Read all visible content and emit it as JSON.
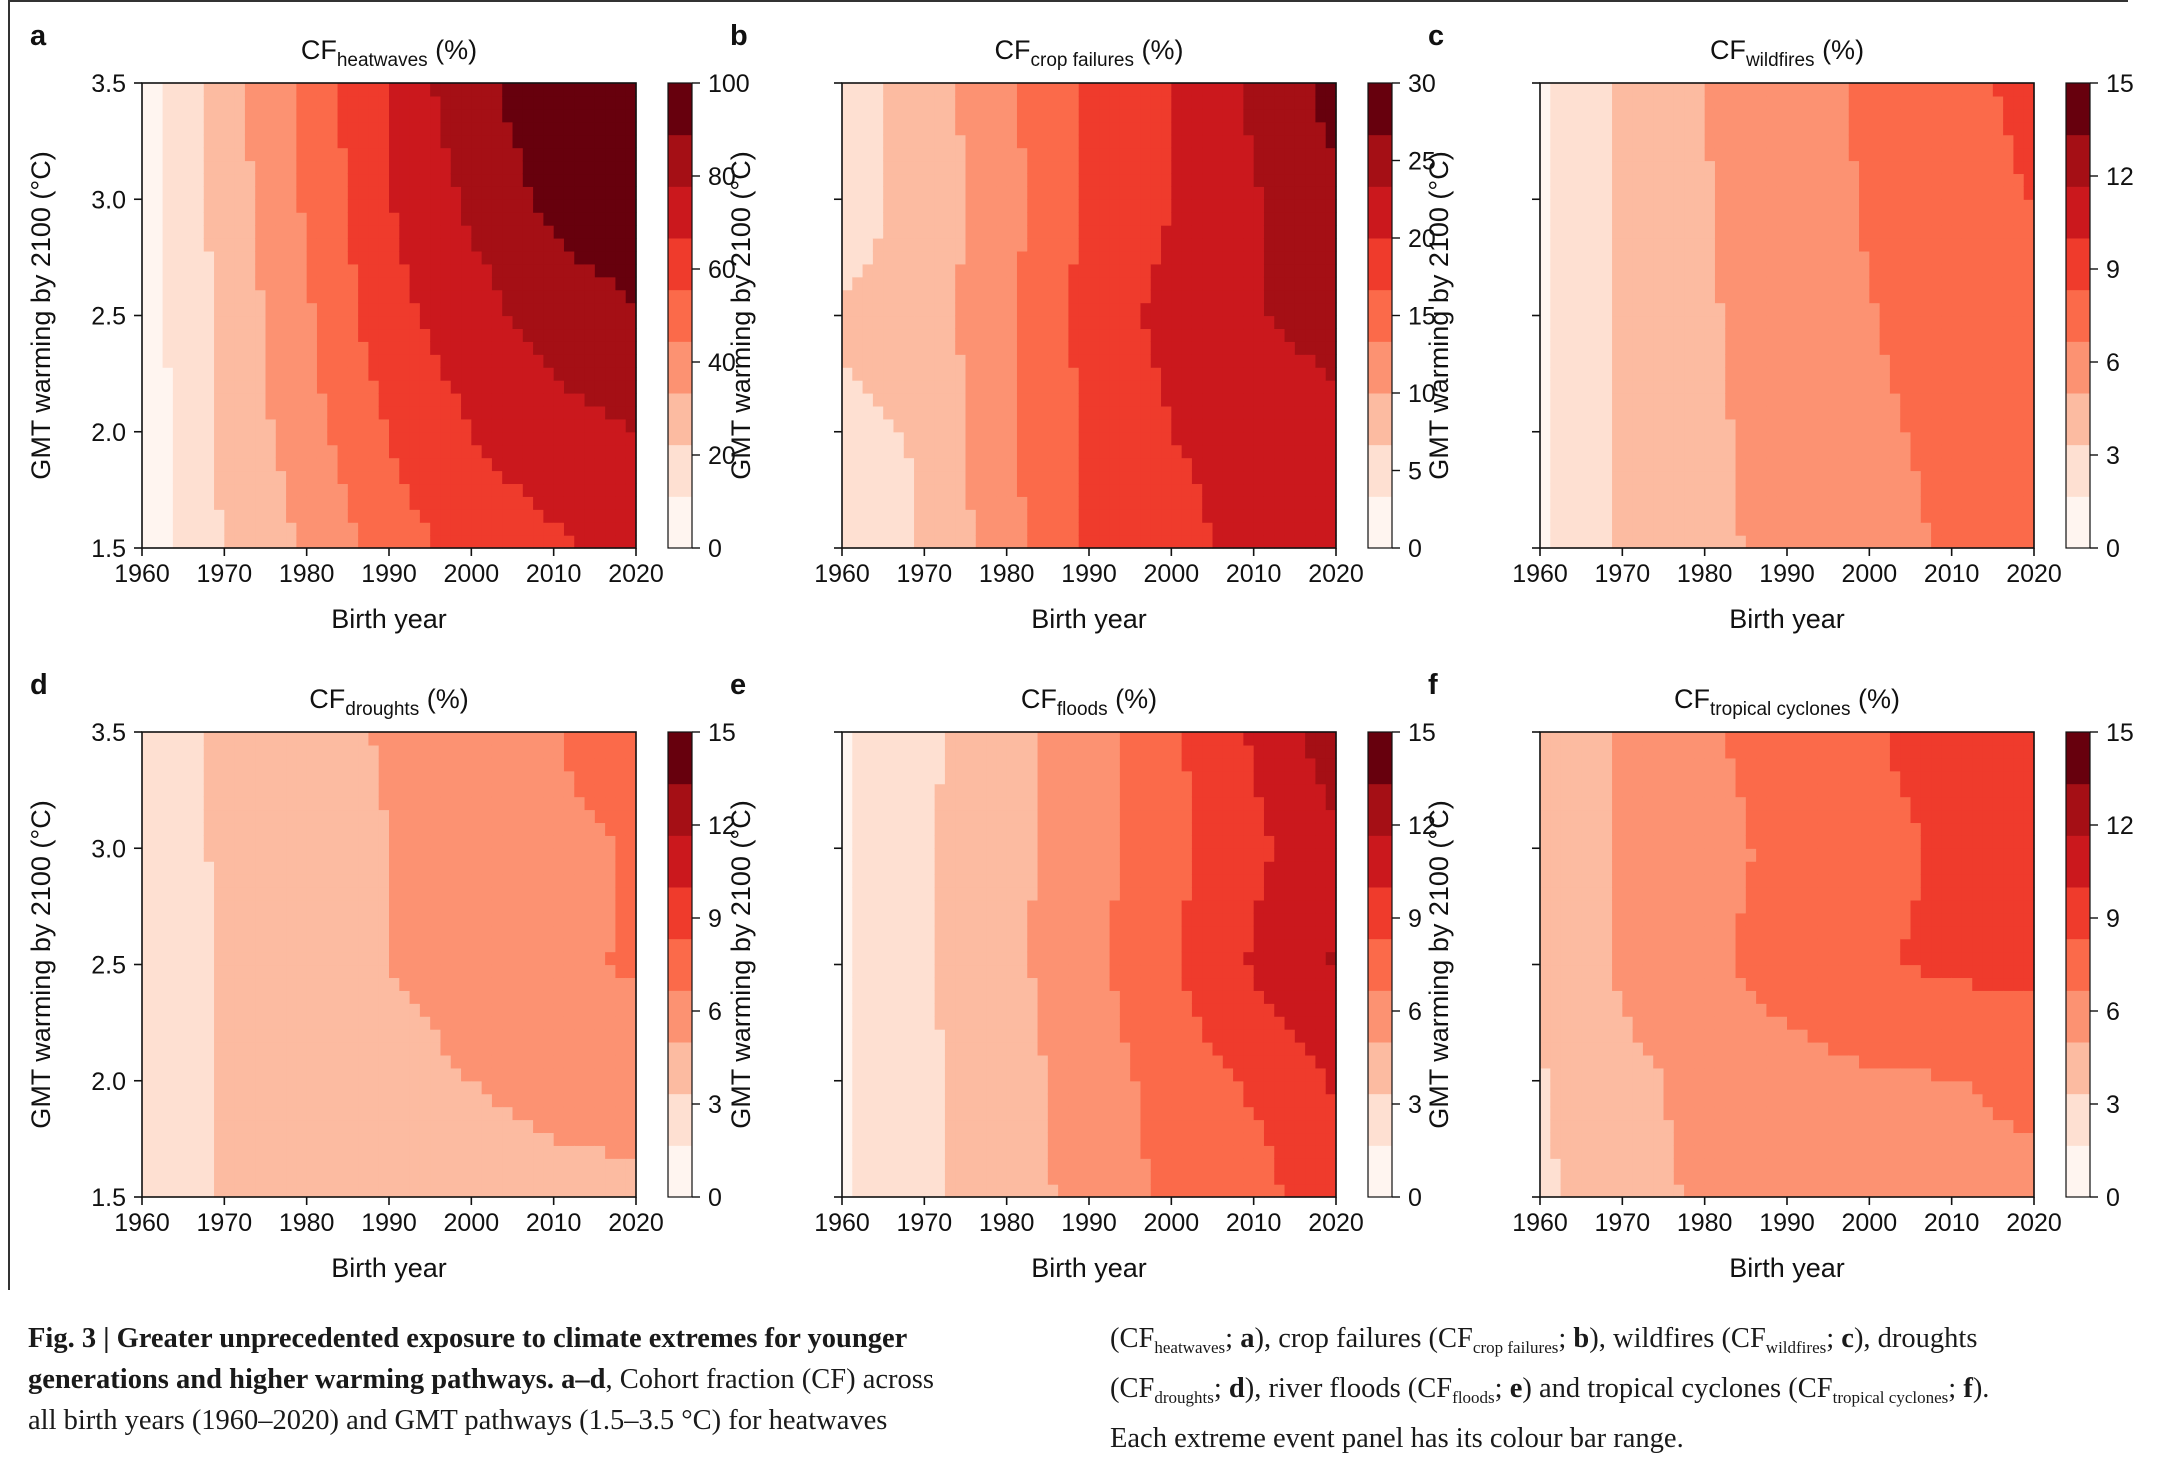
{
  "chart_data": [
    {
      "type": "heatmap",
      "panel_letter": "a",
      "title_main": "CF",
      "title_sub": "heatwaves",
      "title_unit": "(%)",
      "xlabel": "Birth year",
      "ylabel": "GMT warming by 2100 (°C)",
      "xlim": [
        1960,
        2020
      ],
      "ylim": [
        1.5,
        3.5
      ],
      "xticks": [
        "1960",
        "1970",
        "1980",
        "1990",
        "2000",
        "2010",
        "2020"
      ],
      "yticks": [
        "1.5",
        "2.0",
        "2.5",
        "3.0",
        "3.5"
      ],
      "colorbar_max": 100,
      "colorbar_ticks": [
        "0",
        "20",
        "40",
        "60",
        "80",
        "100"
      ],
      "birth_years": [
        1960,
        1970,
        1980,
        1990,
        2000,
        2010,
        2020
      ],
      "gmt_levels": [
        1.5,
        2.0,
        2.5,
        3.0,
        3.5
      ],
      "values": [
        [
          5,
          23,
          34,
          50,
          60,
          65,
          70
        ],
        [
          5,
          24,
          40,
          56,
          67,
          73,
          78
        ],
        [
          5,
          25,
          43,
          63,
          73,
          83,
          88
        ],
        [
          6,
          27,
          46,
          66,
          80,
          92,
          96
        ],
        [
          6,
          28,
          48,
          68,
          86,
          96,
          99
        ]
      ]
    },
    {
      "type": "heatmap",
      "panel_letter": "b",
      "title_main": "CF",
      "title_sub": "crop failures",
      "title_unit": "(%)",
      "xlabel": "Birth year",
      "ylabel": "GMT warming by 2100 (°C)",
      "xlim": [
        1960,
        2020
      ],
      "ylim": [
        1.5,
        3.5
      ],
      "xticks": [
        "1960",
        "1970",
        "1980",
        "1990",
        "2000",
        "2010",
        "2020"
      ],
      "yticks": [],
      "colorbar_max": 30,
      "colorbar_ticks": [
        "0",
        "5",
        "10",
        "15",
        "20",
        "25",
        "30"
      ],
      "birth_years": [
        1960,
        1970,
        1980,
        1990,
        2000,
        2010,
        2020
      ],
      "gmt_levels": [
        1.5,
        2.0,
        2.5,
        3.0,
        3.5
      ],
      "values": [
        [
          3,
          7,
          12,
          17,
          19,
          21,
          22
        ],
        [
          6,
          7,
          13,
          17,
          20,
          21,
          22
        ],
        [
          7,
          8,
          13,
          18,
          21,
          23,
          25
        ],
        [
          5,
          8,
          12,
          17,
          20,
          23,
          26
        ],
        [
          5,
          8,
          13,
          17,
          20,
          24,
          28
        ]
      ]
    },
    {
      "type": "heatmap",
      "panel_letter": "c",
      "title_main": "CF",
      "title_sub": "wildfires",
      "title_unit": "(%)",
      "xlabel": "Birth year",
      "ylabel": "GMT warming by 2100 (°C)",
      "xlim": [
        1960,
        2020
      ],
      "ylim": [
        1.5,
        3.5
      ],
      "xticks": [
        "1960",
        "1970",
        "1980",
        "1990",
        "2000",
        "2010",
        "2020"
      ],
      "yticks": [],
      "colorbar_max": 15,
      "colorbar_ticks": [
        "0",
        "3",
        "6",
        "9",
        "12",
        "15"
      ],
      "birth_years": [
        1960,
        1970,
        1980,
        1990,
        2000,
        2010,
        2020
      ],
      "gmt_levels": [
        1.5,
        2.0,
        2.5,
        3.0,
        3.5
      ],
      "values": [
        [
          1.5,
          3.6,
          4.6,
          5.5,
          6.2,
          6.8,
          7.4
        ],
        [
          1.5,
          3.6,
          4.7,
          5.6,
          6.4,
          7.0,
          7.6
        ],
        [
          1.5,
          3.7,
          4.8,
          5.8,
          6.6,
          7.4,
          8.0
        ],
        [
          1.5,
          3.7,
          4.9,
          5.9,
          6.8,
          7.6,
          8.4
        ],
        [
          1.5,
          3.7,
          5.0,
          6.0,
          6.9,
          7.8,
          8.8
        ]
      ]
    },
    {
      "type": "heatmap",
      "panel_letter": "d",
      "title_main": "CF",
      "title_sub": "droughts",
      "title_unit": "(%)",
      "xlabel": "Birth year",
      "ylabel": "GMT warming by 2100 (°C)",
      "xlim": [
        1960,
        2020
      ],
      "ylim": [
        1.5,
        3.5
      ],
      "xticks": [
        "1960",
        "1970",
        "1980",
        "1990",
        "2000",
        "2010",
        "2020"
      ],
      "yticks": [
        "1.5",
        "2.0",
        "2.5",
        "3.0",
        "3.5"
      ],
      "colorbar_max": 15,
      "colorbar_ticks": [
        "0",
        "3",
        "6",
        "9",
        "12",
        "15"
      ],
      "birth_years": [
        1960,
        1970,
        1980,
        1990,
        2000,
        2010,
        2020
      ],
      "gmt_levels": [
        1.5,
        2.0,
        2.5,
        3.0,
        3.5
      ],
      "values": [
        [
          1.8,
          3.5,
          3.8,
          4.0,
          4.2,
          4.4,
          4.5
        ],
        [
          1.8,
          3.5,
          4.2,
          4.5,
          5.0,
          5.6,
          6.0
        ],
        [
          1.8,
          3.6,
          4.4,
          5.0,
          5.6,
          6.4,
          6.8
        ],
        [
          1.8,
          3.7,
          4.5,
          5.0,
          5.6,
          6.2,
          6.8
        ],
        [
          1.8,
          3.7,
          4.6,
          5.1,
          5.8,
          6.6,
          7.8
        ]
      ]
    },
    {
      "type": "heatmap",
      "panel_letter": "e",
      "title_main": "CF",
      "title_sub": "floods",
      "title_unit": "(%)",
      "xlabel": "Birth year",
      "ylabel": "GMT warming by 2100 (°C)",
      "xlim": [
        1960,
        2020
      ],
      "ylim": [
        1.5,
        3.5
      ],
      "xticks": [
        "1960",
        "1970",
        "1980",
        "1990",
        "2000",
        "2010",
        "2020"
      ],
      "yticks": [],
      "colorbar_max": 15,
      "colorbar_ticks": [
        "0",
        "3",
        "6",
        "9",
        "12",
        "15"
      ],
      "birth_years": [
        1960,
        1970,
        1980,
        1990,
        2000,
        2010,
        2020
      ],
      "gmt_levels": [
        1.5,
        2.0,
        2.5,
        3.0,
        3.5
      ],
      "values": [
        [
          1.5,
          3.0,
          4.2,
          5.6,
          7.0,
          7.6,
          9.5
        ],
        [
          1.5,
          3.0,
          4.3,
          5.7,
          7.4,
          8.6,
          10.2
        ],
        [
          1.5,
          3.2,
          4.5,
          6.2,
          8.2,
          10.2,
          11.8
        ],
        [
          1.5,
          3.2,
          4.5,
          6.0,
          7.8,
          9.6,
          11.2
        ],
        [
          1.5,
          3.0,
          4.4,
          6.0,
          8.0,
          10.2,
          12.8
        ]
      ]
    },
    {
      "type": "heatmap",
      "panel_letter": "f",
      "title_main": "CF",
      "title_sub": "tropical cyclones",
      "title_unit": "(%)",
      "xlabel": "Birth year",
      "ylabel": "GMT warming by 2100 (°C)",
      "xlim": [
        1960,
        2020
      ],
      "ylim": [
        1.5,
        3.5
      ],
      "xticks": [
        "1960",
        "1970",
        "1980",
        "1990",
        "2000",
        "2010",
        "2020"
      ],
      "yticks": [],
      "colorbar_max": 15,
      "colorbar_ticks": [
        "0",
        "3",
        "6",
        "9",
        "12",
        "15"
      ],
      "birth_years": [
        1960,
        1970,
        1980,
        1990,
        2000,
        2010,
        2020
      ],
      "gmt_levels": [
        1.5,
        2.0,
        2.5,
        3.0,
        3.5
      ],
      "values": [
        [
          3.0,
          4.5,
          5.2,
          5.8,
          6.0,
          6.2,
          6.3
        ],
        [
          3.2,
          4.6,
          5.4,
          6.0,
          6.4,
          6.6,
          7.0
        ],
        [
          3.8,
          5.2,
          6.3,
          7.4,
          8.2,
          8.6,
          8.8
        ],
        [
          3.6,
          5.2,
          6.2,
          7.0,
          7.8,
          8.6,
          9.4
        ],
        [
          3.6,
          5.3,
          6.4,
          7.4,
          8.2,
          9.0,
          9.8
        ]
      ]
    }
  ],
  "caption": {
    "left_lines": [
      [
        {
          "t": "Fig. 3 | Greater unprecedented exposure to climate extremes for younger",
          "b": true
        }
      ],
      [
        {
          "t": "generations and higher warming pathways. a–d",
          "b": true
        },
        {
          "t": ", Cohort fraction (CF) across"
        }
      ],
      [
        {
          "t": "all birth years (1960–2020) and GMT pathways (1.5–3.5 °C) for heatwaves"
        }
      ]
    ],
    "right_lines": [
      [
        {
          "t": "(CF"
        },
        {
          "t": "heatwaves",
          "sub": true
        },
        {
          "t": "; "
        },
        {
          "t": "a",
          "b": true
        },
        {
          "t": "), crop failures (CF"
        },
        {
          "t": "crop failures",
          "sub": true
        },
        {
          "t": "; "
        },
        {
          "t": "b",
          "b": true
        },
        {
          "t": "), wildfires (CF"
        },
        {
          "t": "wildfires",
          "sub": true
        },
        {
          "t": "; "
        },
        {
          "t": "c",
          "b": true
        },
        {
          "t": "), droughts"
        }
      ],
      [
        {
          "t": "(CF"
        },
        {
          "t": "droughts",
          "sub": true
        },
        {
          "t": "; "
        },
        {
          "t": "d",
          "b": true
        },
        {
          "t": "), river floods (CF"
        },
        {
          "t": "floods",
          "sub": true
        },
        {
          "t": "; "
        },
        {
          "t": "e",
          "b": true
        },
        {
          "t": ") and tropical cyclones (CF"
        },
        {
          "t": "tropical cyclones",
          "sub": true
        },
        {
          "t": "; "
        },
        {
          "t": "f",
          "b": true
        },
        {
          "t": ")."
        }
      ],
      [
        {
          "t": "Each extreme event panel has its colour bar range."
        }
      ]
    ]
  },
  "colors": {
    "reds": [
      "#fff5f0",
      "#fee0d2",
      "#fcbba1",
      "#fc9272",
      "#fb6a4a",
      "#ef3b2c",
      "#cb181d",
      "#a50f15",
      "#67000d"
    ],
    "axis": "#111111"
  }
}
